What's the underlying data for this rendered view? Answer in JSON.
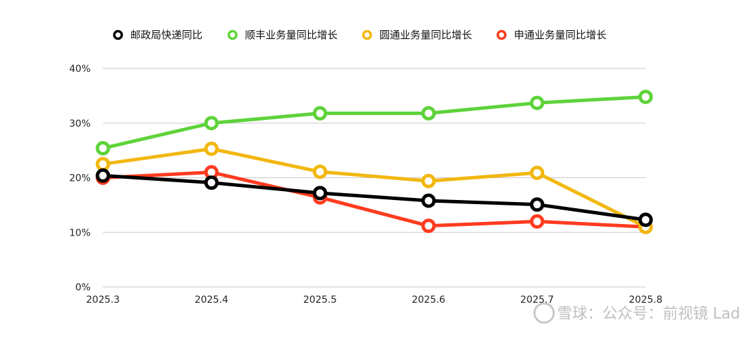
{
  "chart_data": {
    "type": "line",
    "categories": [
      "2025.3",
      "2025.4",
      "2025.5",
      "2025.6",
      "2025.7",
      "2025.8"
    ],
    "ylim": [
      0,
      40
    ],
    "yticks": [
      0,
      10,
      20,
      30,
      40
    ],
    "ytick_labels": [
      "0%",
      "10%",
      "20%",
      "30%",
      "40%"
    ],
    "grid": true,
    "legend_position": "top",
    "series": [
      {
        "name": "邮政局快递同比",
        "color": "#000000",
        "values": [
          20.4,
          19.1,
          17.2,
          15.8,
          15.1,
          12.3
        ]
      },
      {
        "name": "顺丰业务量同比增长",
        "color": "#5ed33a",
        "values": [
          25.4,
          30.0,
          31.8,
          31.8,
          33.7,
          34.8
        ]
      },
      {
        "name": "圆通业务量同比增长",
        "color": "#f2b70f",
        "values": [
          22.5,
          25.3,
          21.1,
          19.4,
          20.9,
          11.0
        ]
      },
      {
        "name": "申通业务量同比增长",
        "color": "#ff3b1f",
        "values": [
          20.0,
          21.0,
          16.4,
          11.2,
          12.0,
          11.0
        ]
      }
    ],
    "draw_order": [
      3,
      2,
      1,
      0
    ]
  },
  "watermark": {
    "text": "雪球：公众号：前视镜 LadyBaba"
  }
}
